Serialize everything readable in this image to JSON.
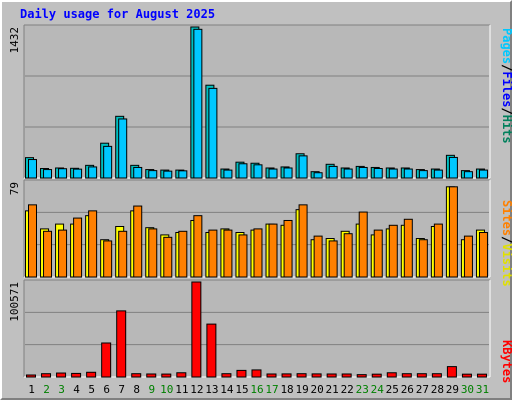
{
  "title": "Daily usage for August 2025",
  "colors": {
    "background": "#c0c0c0",
    "plot_bg": "#b8b8b8",
    "grid": "#808080",
    "title": "#0000ff",
    "hits": "#00c0c0",
    "files": "#00c8ff",
    "pages": "#00a0a0",
    "visits": "#ffff00",
    "sites": "#ff8000",
    "kbytes": "#ff0000",
    "day_weekday": "#000000",
    "day_weekend": "#008000"
  },
  "chart_data": [
    {
      "type": "bar",
      "panel": "hits-files-pages",
      "y_max_label": "1432",
      "ylim": [
        0,
        1432
      ],
      "legend": [
        {
          "label": "Hits",
          "color": "#00805c"
        },
        {
          "label": "Files",
          "color": "#0000ff"
        },
        {
          "label": "Pages",
          "color": "#00c8ff"
        }
      ],
      "legend_sep": "/",
      "x": [
        1,
        2,
        3,
        4,
        5,
        6,
        7,
        8,
        9,
        10,
        11,
        12,
        13,
        14,
        15,
        16,
        17,
        18,
        19,
        20,
        21,
        22,
        23,
        24,
        25,
        26,
        27,
        28,
        29,
        30,
        31
      ],
      "series": [
        {
          "name": "Hits",
          "values": [
            193,
            90,
            95,
            92,
            120,
            330,
            585,
            120,
            80,
            75,
            75,
            1432,
            880,
            85,
            150,
            140,
            95,
            105,
            230,
            60,
            130,
            95,
            110,
            100,
            95,
            95,
            80,
            85,
            215,
            70,
            85
          ]
        },
        {
          "name": "Files",
          "values": [
            175,
            80,
            88,
            84,
            105,
            300,
            560,
            100,
            70,
            65,
            68,
            1410,
            850,
            75,
            135,
            125,
            85,
            95,
            210,
            50,
            110,
            85,
            100,
            90,
            85,
            85,
            70,
            75,
            195,
            60,
            75
          ]
        }
      ]
    },
    {
      "type": "bar",
      "panel": "visits-sites",
      "y_max_label": "79",
      "ylim": [
        0,
        79
      ],
      "legend": [
        {
          "label": "Visits",
          "color": "#e0e000"
        },
        {
          "label": "Sites",
          "color": "#ff8000"
        }
      ],
      "legend_sep": "/",
      "x": [
        1,
        2,
        3,
        4,
        5,
        6,
        7,
        8,
        9,
        10,
        11,
        12,
        13,
        14,
        15,
        16,
        17,
        18,
        19,
        20,
        21,
        22,
        23,
        24,
        25,
        26,
        27,
        28,
        29,
        30,
        31
      ],
      "series": [
        {
          "name": "Visits",
          "values": [
            55,
            40,
            44,
            44,
            51,
            31,
            42,
            55,
            41,
            35,
            37,
            47,
            37,
            40,
            37,
            39,
            44,
            43,
            56,
            31,
            32,
            38,
            44,
            35,
            40,
            43,
            32,
            42,
            75,
            31,
            39
          ]
        },
        {
          "name": "Sites",
          "values": [
            60,
            38,
            39,
            49,
            55,
            30,
            38,
            59,
            40,
            33,
            38,
            51,
            39,
            39,
            35,
            40,
            44,
            47,
            60,
            34,
            30,
            36,
            54,
            39,
            43,
            48,
            31,
            44,
            75,
            34,
            37
          ]
        }
      ]
    },
    {
      "type": "bar",
      "panel": "kbytes",
      "y_max_label": "100571",
      "ylim": [
        0,
        100571
      ],
      "legend": [
        {
          "label": "KBytes",
          "color": "#ff0000"
        }
      ],
      "x": [
        1,
        2,
        3,
        4,
        5,
        6,
        7,
        8,
        9,
        10,
        11,
        12,
        13,
        14,
        15,
        16,
        17,
        18,
        19,
        20,
        21,
        22,
        23,
        24,
        25,
        26,
        27,
        28,
        29,
        30,
        31
      ],
      "series": [
        {
          "name": "KBytes",
          "values": [
            2000,
            3500,
            4200,
            3800,
            5000,
            36000,
            70000,
            3500,
            3200,
            3100,
            4500,
            100571,
            56000,
            3500,
            7000,
            7500,
            3200,
            3300,
            3500,
            3300,
            3200,
            3200,
            2500,
            3000,
            4500,
            3500,
            3500,
            3500,
            11000,
            3000,
            3000
          ]
        }
      ]
    }
  ],
  "days": [
    "1",
    "2",
    "3",
    "4",
    "5",
    "6",
    "7",
    "8",
    "9",
    "10",
    "11",
    "12",
    "13",
    "14",
    "15",
    "16",
    "17",
    "18",
    "19",
    "20",
    "21",
    "22",
    "23",
    "24",
    "25",
    "26",
    "27",
    "28",
    "29",
    "30",
    "31"
  ],
  "weekend_days": [
    2,
    3,
    9,
    10,
    16,
    17,
    23,
    24,
    30,
    31
  ]
}
